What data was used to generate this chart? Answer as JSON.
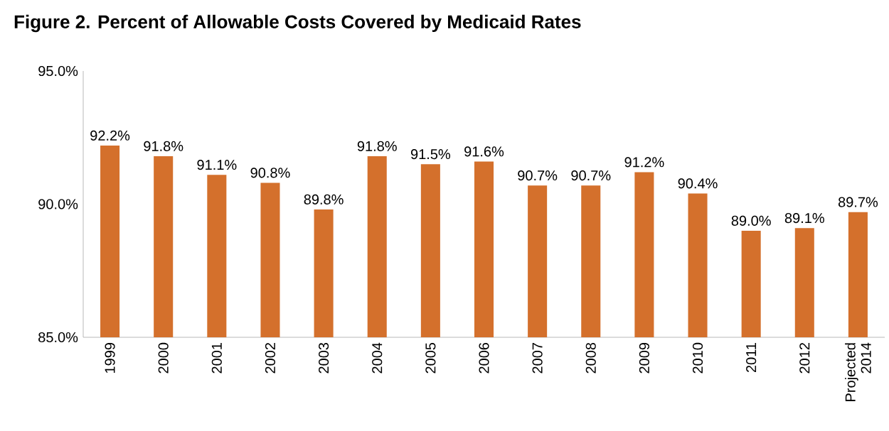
{
  "chart_data": {
    "type": "bar",
    "title": "Figure 2. Percent of Allowable Costs Covered by Medicaid Rates",
    "categories": [
      "1999",
      "2000",
      "2001",
      "2002",
      "2003",
      "2004",
      "2005",
      "2006",
      "2007",
      "2008",
      "2009",
      "2010",
      "2011",
      "2012",
      "Projected 2014"
    ],
    "values": [
      92.2,
      91.8,
      91.1,
      90.8,
      89.8,
      91.8,
      91.5,
      91.6,
      90.7,
      90.7,
      91.2,
      90.4,
      89.0,
      89.1,
      89.7
    ],
    "value_labels": [
      "92.2%",
      "91.8%",
      "91.1%",
      "90.8%",
      "89.8%",
      "91.8%",
      "91.5%",
      "91.6%",
      "90.7%",
      "90.7%",
      "91.2%",
      "90.4%",
      "89.0%",
      "89.1%",
      "89.7%"
    ],
    "color": "#d4702c",
    "ylim": [
      85,
      95
    ],
    "yticks": [
      {
        "value": 85,
        "label": "85.0%"
      },
      {
        "value": 90,
        "label": "90.0%"
      },
      {
        "value": 95,
        "label": "95.0%"
      }
    ],
    "grid": false
  }
}
